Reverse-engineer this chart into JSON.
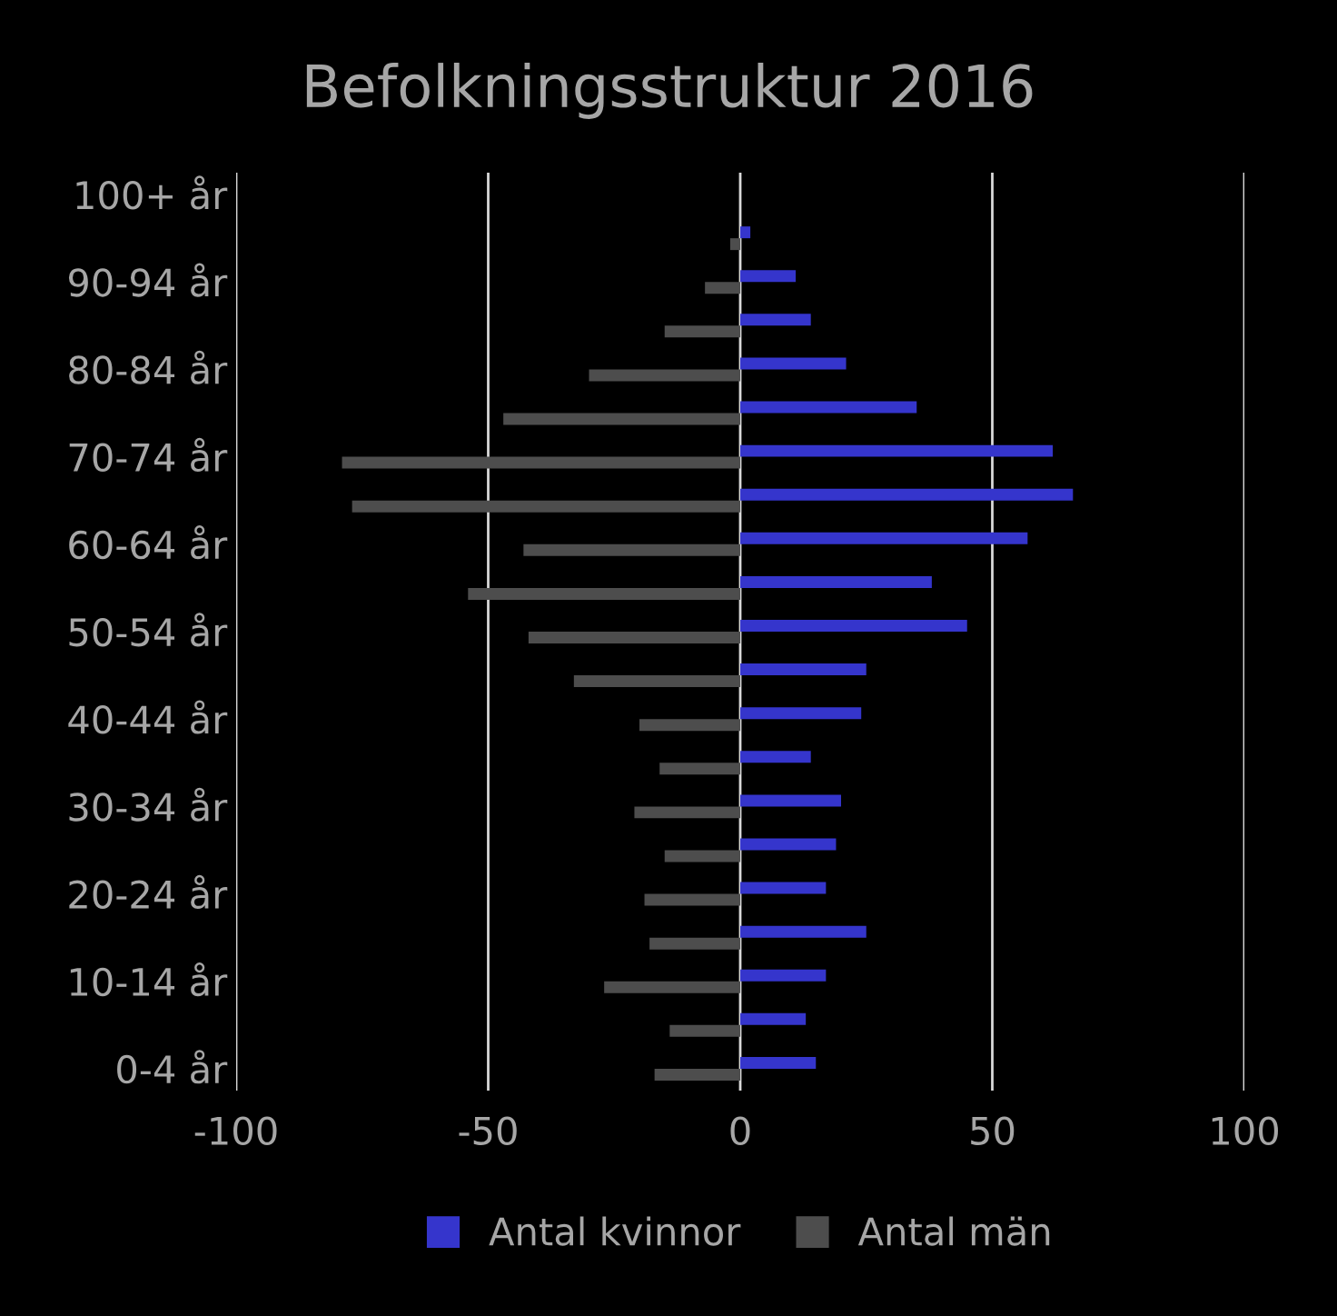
{
  "chart_data": {
    "type": "bar",
    "orientation": "horizontal",
    "title": "Befolkningsstruktur 2016",
    "categories": [
      "100+ år",
      null,
      "90-94 år",
      null,
      "80-84 år",
      null,
      "70-74 år",
      null,
      "60-64 år",
      null,
      "50-54 år",
      null,
      "40-44 år",
      null,
      "30-34 år",
      null,
      "20-24 år",
      null,
      "10-14 år",
      null,
      "0-4 år"
    ],
    "series": [
      {
        "name": "Antal kvinnor",
        "color": "#3535cc",
        "values": [
          0,
          2,
          11,
          14,
          21,
          35,
          62,
          66,
          57,
          38,
          45,
          25,
          24,
          14,
          20,
          19,
          17,
          25,
          17,
          13,
          15
        ]
      },
      {
        "name": "Antal män",
        "color": "#4d4d4d",
        "values": [
          0,
          -2,
          -7,
          -15,
          -30,
          -47,
          -79,
          -77,
          -43,
          -54,
          -42,
          -33,
          -20,
          -16,
          -21,
          -15,
          -19,
          -18,
          -27,
          -14,
          -17
        ]
      }
    ],
    "xlim": [
      -100,
      100
    ],
    "xticks": [
      -100,
      -50,
      0,
      50,
      100
    ],
    "grid": "x",
    "legend": "bottom"
  }
}
